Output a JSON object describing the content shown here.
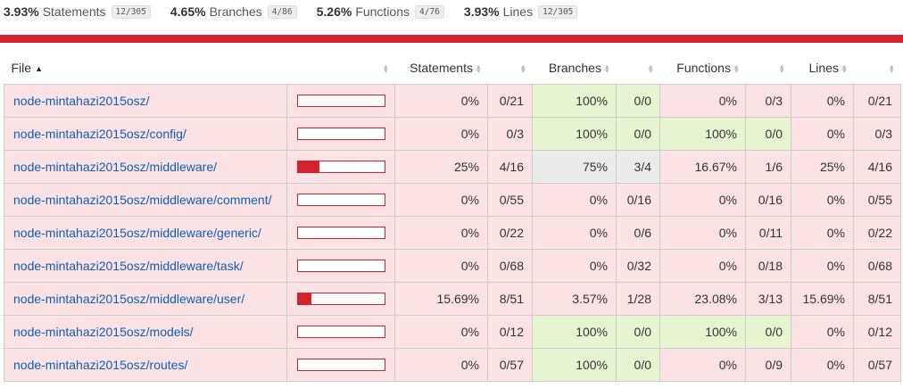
{
  "summary": [
    {
      "pct": "3.93%",
      "label": "Statements",
      "fraction": "12/305"
    },
    {
      "pct": "4.65%",
      "label": "Branches",
      "fraction": "4/86"
    },
    {
      "pct": "5.26%",
      "label": "Functions",
      "fraction": "4/76"
    },
    {
      "pct": "3.93%",
      "label": "Lines",
      "fraction": "12/305"
    }
  ],
  "colors": {
    "low": "#fce1e5",
    "high": "#e6f5d0",
    "medium": "#ebebeb",
    "bar": "#d3232f",
    "link": "#0b5fb5"
  },
  "headers": {
    "file": "File",
    "statements": "Statements",
    "branches": "Branches",
    "functions": "Functions",
    "lines": "Lines"
  },
  "rows": [
    {
      "file": "node-mintahazi2015osz/",
      "coverage": 0,
      "statements": {
        "pct": "0%",
        "frac": "0/21",
        "level": "low"
      },
      "branches": {
        "pct": "100%",
        "frac": "0/0",
        "level": "high"
      },
      "functions": {
        "pct": "0%",
        "frac": "0/3",
        "level": "low"
      },
      "lines": {
        "pct": "0%",
        "frac": "0/21",
        "level": "low"
      }
    },
    {
      "file": "node-mintahazi2015osz/config/",
      "coverage": 0,
      "statements": {
        "pct": "0%",
        "frac": "0/3",
        "level": "low"
      },
      "branches": {
        "pct": "100%",
        "frac": "0/0",
        "level": "high"
      },
      "functions": {
        "pct": "100%",
        "frac": "0/0",
        "level": "high"
      },
      "lines": {
        "pct": "0%",
        "frac": "0/3",
        "level": "low"
      }
    },
    {
      "file": "node-mintahazi2015osz/middleware/",
      "coverage": 25,
      "statements": {
        "pct": "25%",
        "frac": "4/16",
        "level": "low"
      },
      "branches": {
        "pct": "75%",
        "frac": "3/4",
        "level": "medium"
      },
      "functions": {
        "pct": "16.67%",
        "frac": "1/6",
        "level": "low"
      },
      "lines": {
        "pct": "25%",
        "frac": "4/16",
        "level": "low"
      }
    },
    {
      "file": "node-mintahazi2015osz/middleware/comment/",
      "coverage": 0,
      "statements": {
        "pct": "0%",
        "frac": "0/55",
        "level": "low"
      },
      "branches": {
        "pct": "0%",
        "frac": "0/16",
        "level": "low"
      },
      "functions": {
        "pct": "0%",
        "frac": "0/16",
        "level": "low"
      },
      "lines": {
        "pct": "0%",
        "frac": "0/55",
        "level": "low"
      }
    },
    {
      "file": "node-mintahazi2015osz/middleware/generic/",
      "coverage": 0,
      "statements": {
        "pct": "0%",
        "frac": "0/22",
        "level": "low"
      },
      "branches": {
        "pct": "0%",
        "frac": "0/6",
        "level": "low"
      },
      "functions": {
        "pct": "0%",
        "frac": "0/11",
        "level": "low"
      },
      "lines": {
        "pct": "0%",
        "frac": "0/22",
        "level": "low"
      }
    },
    {
      "file": "node-mintahazi2015osz/middleware/task/",
      "coverage": 0,
      "statements": {
        "pct": "0%",
        "frac": "0/68",
        "level": "low"
      },
      "branches": {
        "pct": "0%",
        "frac": "0/32",
        "level": "low"
      },
      "functions": {
        "pct": "0%",
        "frac": "0/18",
        "level": "low"
      },
      "lines": {
        "pct": "0%",
        "frac": "0/68",
        "level": "low"
      }
    },
    {
      "file": "node-mintahazi2015osz/middleware/user/",
      "coverage": 15.69,
      "statements": {
        "pct": "15.69%",
        "frac": "8/51",
        "level": "low"
      },
      "branches": {
        "pct": "3.57%",
        "frac": "1/28",
        "level": "low"
      },
      "functions": {
        "pct": "23.08%",
        "frac": "3/13",
        "level": "low"
      },
      "lines": {
        "pct": "15.69%",
        "frac": "8/51",
        "level": "low"
      }
    },
    {
      "file": "node-mintahazi2015osz/models/",
      "coverage": 0,
      "statements": {
        "pct": "0%",
        "frac": "0/12",
        "level": "low"
      },
      "branches": {
        "pct": "100%",
        "frac": "0/0",
        "level": "high"
      },
      "functions": {
        "pct": "100%",
        "frac": "0/0",
        "level": "high"
      },
      "lines": {
        "pct": "0%",
        "frac": "0/12",
        "level": "low"
      }
    },
    {
      "file": "node-mintahazi2015osz/routes/",
      "coverage": 0,
      "statements": {
        "pct": "0%",
        "frac": "0/57",
        "level": "low"
      },
      "branches": {
        "pct": "100%",
        "frac": "0/0",
        "level": "high"
      },
      "functions": {
        "pct": "0%",
        "frac": "0/9",
        "level": "low"
      },
      "lines": {
        "pct": "0%",
        "frac": "0/57",
        "level": "low"
      }
    }
  ]
}
